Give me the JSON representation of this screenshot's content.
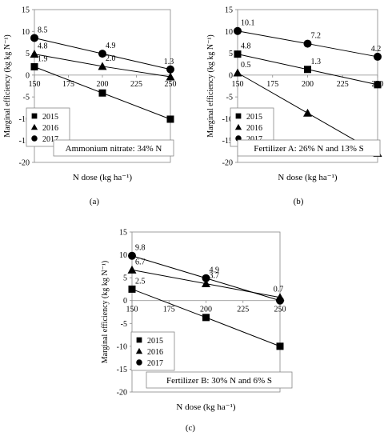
{
  "chart_data": [
    {
      "type": "line",
      "panel_label": "(a)",
      "ylabel": "Marginal efficiency (kg kg N⁻¹)",
      "xlabel": "N dose (kg ha⁻¹)",
      "xlim": [
        150,
        250
      ],
      "ylim": [
        -20,
        15
      ],
      "x_ticks": [
        "150",
        "175",
        "200",
        "225",
        "250"
      ],
      "y_ticks": [
        "15",
        "10",
        "5",
        "0",
        "-5",
        "-10",
        "-15",
        "-20"
      ],
      "grid": false,
      "legend_position": "lower-left",
      "annotation": "Ammonium nitrate: 34% N",
      "series": [
        {
          "name": "2015",
          "marker": "square",
          "x": [
            150,
            200,
            250
          ],
          "values": [
            1.9,
            -4.1,
            -10.1
          ],
          "point_labels": [
            "1.9",
            "",
            ""
          ]
        },
        {
          "name": "2016",
          "marker": "triangle",
          "x": [
            150,
            200,
            250
          ],
          "values": [
            4.8,
            2.0,
            -0.4
          ],
          "point_labels": [
            "4.8",
            "2.0",
            ""
          ]
        },
        {
          "name": "2017",
          "marker": "circle",
          "x": [
            150,
            200,
            250
          ],
          "values": [
            8.5,
            4.9,
            1.3
          ],
          "point_labels": [
            "8.5",
            "4.9",
            "1.3"
          ]
        }
      ]
    },
    {
      "type": "line",
      "panel_label": "(b)",
      "ylabel": "Marginal efficiency (kg kg N⁻¹)",
      "xlabel": "N dose (kg ha⁻¹)",
      "xlim": [
        150,
        250
      ],
      "ylim": [
        -20,
        15
      ],
      "x_ticks": [
        "150",
        "175",
        "200",
        "225",
        "250"
      ],
      "y_ticks": [
        "15",
        "10",
        "5",
        "0",
        "-5",
        "-10",
        "-15",
        "-20"
      ],
      "grid": false,
      "legend_position": "lower-left",
      "annotation": "Fertilizer A: 26% N and 13% S",
      "series": [
        {
          "name": "2015",
          "marker": "square",
          "x": [
            150,
            200,
            250
          ],
          "values": [
            4.8,
            1.3,
            -2.2
          ],
          "point_labels": [
            "4.8",
            "1.3",
            ""
          ]
        },
        {
          "name": "2016",
          "marker": "triangle",
          "x": [
            150,
            200,
            250
          ],
          "values": [
            0.5,
            -8.7,
            -17.9
          ],
          "point_labels": [
            "0.5",
            "",
            ""
          ]
        },
        {
          "name": "2017",
          "marker": "circle",
          "x": [
            150,
            200,
            250
          ],
          "values": [
            10.1,
            7.2,
            4.2
          ],
          "point_labels": [
            "10.1",
            "7.2",
            "4.2"
          ]
        }
      ]
    },
    {
      "type": "line",
      "panel_label": "(c)",
      "ylabel": "Marginal efficiency (kg kg N⁻¹)",
      "xlabel": "N dose (kg ha⁻¹)",
      "xlim": [
        150,
        250
      ],
      "ylim": [
        -20,
        15
      ],
      "x_ticks": [
        "150",
        "175",
        "200",
        "225",
        "250"
      ],
      "y_ticks": [
        "15",
        "10",
        "5",
        "0",
        "-5",
        "-10",
        "-15",
        "-20"
      ],
      "grid": false,
      "legend_position": "lower-left",
      "annotation": "Fertilizer B: 30% N and 6% S",
      "series": [
        {
          "name": "2015",
          "marker": "square",
          "x": [
            150,
            200,
            250
          ],
          "values": [
            2.5,
            -3.7,
            -10.0
          ],
          "point_labels": [
            "2.5",
            "",
            ""
          ]
        },
        {
          "name": "2016",
          "marker": "triangle",
          "x": [
            150,
            200,
            250
          ],
          "values": [
            6.7,
            3.7,
            0.7
          ],
          "point_labels": [
            "6.7",
            "3.7",
            "0.7"
          ]
        },
        {
          "name": "2017",
          "marker": "circle",
          "x": [
            150,
            200,
            250
          ],
          "values": [
            9.8,
            4.9,
            0.0
          ],
          "point_labels": [
            "9.8",
            "4.9",
            ""
          ]
        }
      ]
    }
  ]
}
